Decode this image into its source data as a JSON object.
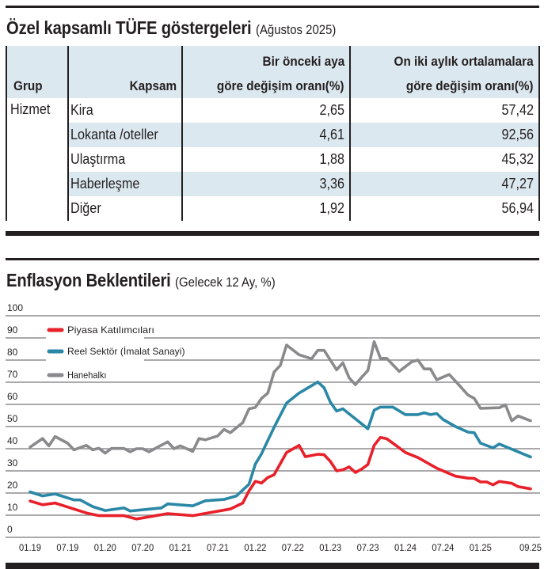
{
  "table_section": {
    "title": "Özel kapsamlı TÜFE göstergeleri",
    "subtitle": "(Ağustos 2025)",
    "headers": {
      "grup": "Grup",
      "kapsam": "Kapsam",
      "monthly_line1": "Bir önceki aya",
      "monthly_line2": "göre değişim oranı(%)",
      "annual_line1": "On iki aylık ortalamalara",
      "annual_line2": "göre değişim oranı(%)"
    },
    "group": "Hizmet",
    "rows": [
      {
        "kapsam": "Kira",
        "monthly": "2,65",
        "annual": "57,42"
      },
      {
        "kapsam": "Lokanta /oteller",
        "monthly": "4,61",
        "annual": "92,56"
      },
      {
        "kapsam": "Ulaştırma",
        "monthly": "1,88",
        "annual": "45,32"
      },
      {
        "kapsam": "Haberleşme",
        "monthly": "3,36",
        "annual": "47,27"
      },
      {
        "kapsam": "Diğer",
        "monthly": "1,92",
        "annual": "56,94"
      }
    ]
  },
  "chart_section": {
    "title": "Enflasyon Beklentileri",
    "subtitle": "(Gelecek 12 Ay, %)"
  },
  "chart_data": {
    "type": "line",
    "title": "Enflasyon Beklentileri",
    "subtitle": "(Gelecek 12 Ay, %)",
    "xlabel": "",
    "ylabel": "",
    "x_unit": "month index from 01.19",
    "xlim": [
      0,
      80
    ],
    "ylim": [
      0,
      100
    ],
    "yticks": [
      "0",
      "10",
      "20",
      "30",
      "40",
      "50",
      "60",
      "70",
      "80",
      "90",
      "100"
    ],
    "xticks": [
      {
        "m": 0,
        "label": "01.19"
      },
      {
        "m": 6,
        "label": "07.19"
      },
      {
        "m": 12,
        "label": "01.20"
      },
      {
        "m": 18,
        "label": "07.20"
      },
      {
        "m": 24,
        "label": "01.21"
      },
      {
        "m": 30,
        "label": "07.21"
      },
      {
        "m": 36,
        "label": "01.22"
      },
      {
        "m": 42,
        "label": "07.22"
      },
      {
        "m": 48,
        "label": "01.23"
      },
      {
        "m": 54,
        "label": "07.23"
      },
      {
        "m": 60,
        "label": "01.24"
      },
      {
        "m": 66,
        "label": "07.24"
      },
      {
        "m": 72,
        "label": "01.25"
      },
      {
        "m": 80,
        "label": "09.25"
      }
    ],
    "grid": true,
    "legend_position": "top-left",
    "series": [
      {
        "name": "Piyasa Katılımcıları",
        "color": "#e8202a",
        "points": [
          [
            0,
            16.4
          ],
          [
            2,
            14.7
          ],
          [
            4,
            15.5
          ],
          [
            7,
            12.8
          ],
          [
            9,
            11
          ],
          [
            11,
            9.8
          ],
          [
            15,
            9.8
          ],
          [
            17,
            8.3
          ],
          [
            22,
            10.7
          ],
          [
            26,
            9.8
          ],
          [
            32,
            12.8
          ],
          [
            34,
            15.5
          ],
          [
            35,
            21
          ],
          [
            36,
            25.3
          ],
          [
            37,
            24.5
          ],
          [
            38,
            27
          ],
          [
            39,
            28.2
          ],
          [
            41,
            38.3
          ],
          [
            43,
            41.5
          ],
          [
            44,
            36.4
          ],
          [
            46,
            37.5
          ],
          [
            47,
            37.3
          ],
          [
            48,
            34.3
          ],
          [
            49,
            30
          ],
          [
            50,
            30.5
          ],
          [
            51,
            31.8
          ],
          [
            52,
            29.3
          ],
          [
            53,
            30.8
          ],
          [
            54,
            32.9
          ],
          [
            55,
            41.5
          ],
          [
            56,
            45.1
          ],
          [
            57,
            44.5
          ],
          [
            58,
            42.5
          ],
          [
            60,
            38.3
          ],
          [
            62,
            36
          ],
          [
            65,
            31.2
          ],
          [
            68,
            27.6
          ],
          [
            70,
            26.7
          ],
          [
            71,
            26.6
          ],
          [
            72,
            25
          ],
          [
            73,
            25
          ],
          [
            74,
            23.7
          ],
          [
            75,
            25.2
          ],
          [
            77,
            24.4
          ],
          [
            78,
            22.9
          ],
          [
            80,
            21.9
          ]
        ]
      },
      {
        "name": "Reel Sektör (İmalat Sanayi)",
        "color": "#2a88a6",
        "points": [
          [
            0,
            20.5
          ],
          [
            2,
            18.7
          ],
          [
            4,
            19.6
          ],
          [
            7,
            16.9
          ],
          [
            8,
            16.9
          ],
          [
            10,
            13.9
          ],
          [
            12,
            12.1
          ],
          [
            15,
            13.3
          ],
          [
            16,
            11.9
          ],
          [
            21,
            13.3
          ],
          [
            22,
            15.1
          ],
          [
            26,
            14.2
          ],
          [
            28,
            16.5
          ],
          [
            31,
            17.1
          ],
          [
            33,
            18.7
          ],
          [
            35,
            24
          ],
          [
            36,
            33
          ],
          [
            37,
            37.7
          ],
          [
            38,
            43.7
          ],
          [
            39,
            49.6
          ],
          [
            41,
            60.6
          ],
          [
            43,
            65.1
          ],
          [
            46,
            70.1
          ],
          [
            47,
            67.5
          ],
          [
            48,
            61
          ],
          [
            49,
            57
          ],
          [
            50,
            58
          ],
          [
            54,
            49
          ],
          [
            55,
            57.4
          ],
          [
            56,
            58.8
          ],
          [
            58,
            58.8
          ],
          [
            60,
            55.4
          ],
          [
            62,
            55.4
          ],
          [
            63,
            56.2
          ],
          [
            64,
            55.4
          ],
          [
            65,
            55.9
          ],
          [
            66,
            53.2
          ],
          [
            68,
            50
          ],
          [
            70,
            47.5
          ],
          [
            71,
            47.2
          ],
          [
            72,
            42.5
          ],
          [
            74,
            40.4
          ],
          [
            75,
            42.1
          ],
          [
            80,
            36.3
          ]
        ]
      },
      {
        "name": "Hanehalkı",
        "color": "#8a8a8c",
        "points": [
          [
            0,
            40.7
          ],
          [
            2,
            44.6
          ],
          [
            3,
            41.3
          ],
          [
            4,
            45.5
          ],
          [
            6,
            42.5
          ],
          [
            7,
            39.5
          ],
          [
            9,
            41.5
          ],
          [
            10,
            39.5
          ],
          [
            11,
            40.2
          ],
          [
            12,
            38
          ],
          [
            13,
            40.1
          ],
          [
            15,
            40.1
          ],
          [
            16,
            38.6
          ],
          [
            17,
            40
          ],
          [
            18,
            40
          ],
          [
            19,
            38.6
          ],
          [
            22,
            43.1
          ],
          [
            23,
            40
          ],
          [
            24,
            41.3
          ],
          [
            26,
            38.8
          ],
          [
            27,
            44.6
          ],
          [
            28,
            44
          ],
          [
            30,
            45.8
          ],
          [
            31,
            48.7
          ],
          [
            32,
            47.2
          ],
          [
            34,
            51.8
          ],
          [
            35,
            58
          ],
          [
            36,
            58.6
          ],
          [
            37,
            62.7
          ],
          [
            38,
            65.1
          ],
          [
            38.5,
            69.9
          ],
          [
            39,
            74.6
          ],
          [
            40,
            77.6
          ],
          [
            41,
            86.8
          ],
          [
            43,
            82.4
          ],
          [
            45,
            80.6
          ],
          [
            46,
            84.4
          ],
          [
            47,
            84.4
          ],
          [
            49,
            75.6
          ],
          [
            50,
            78.8
          ],
          [
            51,
            72
          ],
          [
            52,
            68.9
          ],
          [
            53,
            72.2
          ],
          [
            54,
            75.3
          ],
          [
            55,
            88.3
          ],
          [
            56,
            80.8
          ],
          [
            57,
            80.8
          ],
          [
            59,
            74.9
          ],
          [
            61,
            79.2
          ],
          [
            62,
            80
          ],
          [
            63,
            76
          ],
          [
            64,
            76
          ],
          [
            65,
            71.1
          ],
          [
            67,
            73.5
          ],
          [
            68,
            70.5
          ],
          [
            70,
            64.2
          ],
          [
            71,
            62.7
          ],
          [
            72,
            58.2
          ],
          [
            75,
            58.5
          ],
          [
            76,
            59.8
          ],
          [
            77,
            52.6
          ],
          [
            78,
            54.8
          ],
          [
            80,
            52.6
          ]
        ]
      }
    ]
  }
}
